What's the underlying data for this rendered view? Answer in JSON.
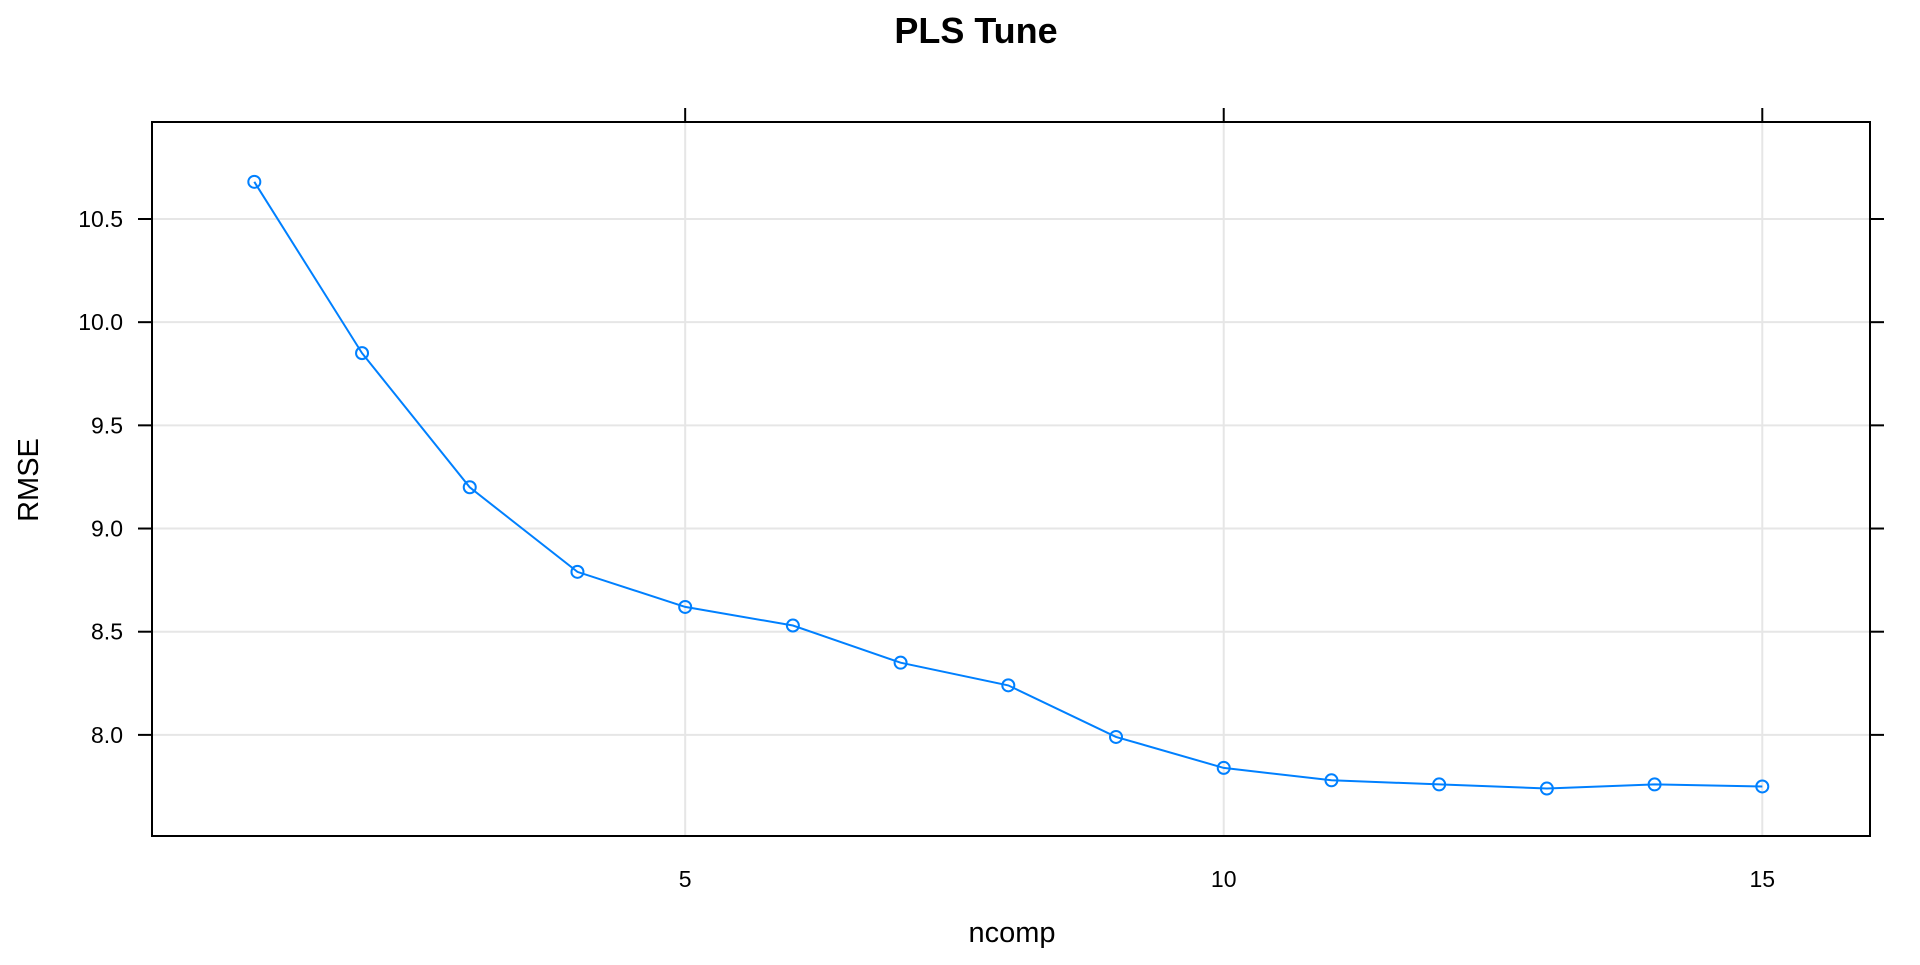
{
  "chart_data": {
    "type": "line",
    "title": "PLS Tune",
    "xlabel": "ncomp",
    "ylabel": "RMSE",
    "xlim": [
      0.05,
      16.0
    ],
    "ylim": [
      7.51,
      10.97
    ],
    "x_ticks": [
      5,
      10,
      15
    ],
    "x_tick_labels": [
      "5",
      "10",
      "15"
    ],
    "y_ticks": [
      8.0,
      8.5,
      9.0,
      9.5,
      10.0,
      10.5
    ],
    "y_tick_labels": [
      "8.0",
      "8.5",
      "9.0",
      "9.5",
      "10.0",
      "10.5"
    ],
    "grid": true,
    "series": [
      {
        "x": [
          1,
          2,
          3,
          4,
          5,
          6,
          7,
          8,
          9,
          10,
          11,
          12,
          13,
          14,
          15
        ],
        "values": [
          10.68,
          9.85,
          9.2,
          8.79,
          8.62,
          8.53,
          8.35,
          8.24,
          7.99,
          7.84,
          7.78,
          7.76,
          7.74,
          7.76,
          7.75
        ],
        "color": "#0080ff",
        "marker": "open-circle"
      }
    ]
  }
}
